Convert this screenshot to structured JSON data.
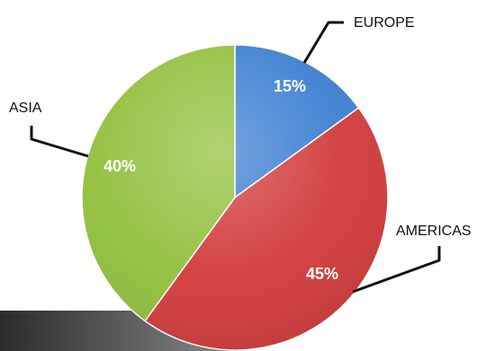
{
  "chart_data": {
    "type": "pie",
    "slices": [
      {
        "label": "EUROPE",
        "value": 15,
        "value_label": "15%",
        "color": "#3d7fd2"
      },
      {
        "label": "AMERICAS",
        "value": 45,
        "value_label": "45%",
        "color": "#d23b3b"
      },
      {
        "label": "ASIA",
        "value": 40,
        "value_label": "40%",
        "color": "#92c03e"
      }
    ],
    "start_angle": "12 o'clock",
    "direction": "clockwise",
    "legend": "none",
    "title": ""
  }
}
